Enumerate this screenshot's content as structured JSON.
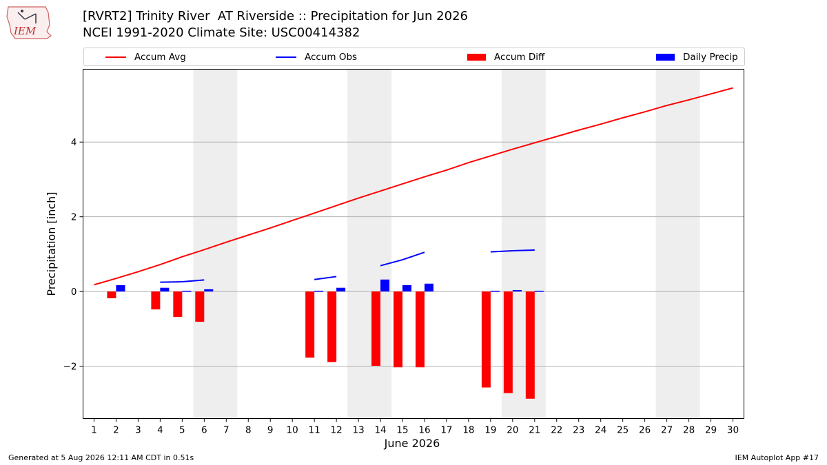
{
  "header": {
    "title_line1": "[RVRT2] Trinity River  AT Riverside :: Precipitation for Jun 2026",
    "title_line2": "NCEI 1991-2020 Climate Site: USC00414382",
    "logo_text": "IEM"
  },
  "legend": {
    "items": [
      {
        "label": "Accum Avg",
        "color": "#ff0000",
        "kind": "line"
      },
      {
        "label": "Accum Obs",
        "color": "#0000ff",
        "kind": "line"
      },
      {
        "label": "Accum Diff",
        "color": "#ff0000",
        "kind": "box"
      },
      {
        "label": "Daily Precip",
        "color": "#0000ff",
        "kind": "box"
      }
    ]
  },
  "footer": {
    "left": "Generated at 5 Aug 2026 12:11 AM CDT in 0.51s",
    "right": "IEM Autoplot App #17"
  },
  "chart_data": {
    "type": "bar",
    "xlabel": "June 2026",
    "ylabel": "Precipitation [inch]",
    "xlim": [
      0.5,
      30.5
    ],
    "ylim": [
      -3.4,
      5.95
    ],
    "yticks": [
      -2,
      0,
      2,
      4
    ],
    "ytick_labels": [
      "−2",
      "0",
      "2",
      "4"
    ],
    "xticks": [
      1,
      2,
      3,
      4,
      5,
      6,
      7,
      8,
      9,
      10,
      11,
      12,
      13,
      14,
      15,
      16,
      17,
      18,
      19,
      20,
      21,
      22,
      23,
      24,
      25,
      26,
      27,
      28,
      29,
      30
    ],
    "grid": "horizontal",
    "weekend_shading": [
      [
        6,
        7
      ],
      [
        13,
        14
      ],
      [
        20,
        21
      ],
      [
        27,
        28
      ]
    ],
    "series": [
      {
        "name": "Accum Avg",
        "kind": "line",
        "color": "#ff0000",
        "x": [
          1,
          2,
          3,
          4,
          5,
          6,
          7,
          8,
          9,
          10,
          11,
          12,
          13,
          14,
          15,
          16,
          17,
          18,
          19,
          20,
          21,
          22,
          23,
          24,
          25,
          26,
          27,
          28,
          29,
          30
        ],
        "values": [
          0.18,
          0.35,
          0.53,
          0.72,
          0.93,
          1.12,
          1.32,
          1.51,
          1.7,
          1.9,
          2.1,
          2.3,
          2.5,
          2.69,
          2.88,
          3.07,
          3.25,
          3.45,
          3.63,
          3.81,
          3.98,
          4.15,
          4.32,
          4.48,
          4.65,
          4.81,
          4.98,
          5.13,
          5.29,
          5.45
        ]
      },
      {
        "name": "Accum Obs",
        "kind": "line",
        "color": "#0000ff",
        "segments": [
          {
            "x": [
              4,
              5,
              6
            ],
            "values": [
              0.25,
              0.26,
              0.31
            ]
          },
          {
            "x": [
              11,
              12
            ],
            "values": [
              0.32,
              0.4
            ]
          },
          {
            "x": [
              14,
              15,
              16
            ],
            "values": [
              0.69,
              0.85,
              1.05
            ]
          },
          {
            "x": [
              19,
              20,
              21
            ],
            "values": [
              1.06,
              1.09,
              1.11
            ]
          }
        ]
      },
      {
        "name": "Accum Diff",
        "kind": "bar",
        "color": "#ff0000",
        "x": [
          2,
          4,
          5,
          6,
          11,
          12,
          14,
          15,
          16,
          19,
          20,
          21
        ],
        "values": [
          -0.18,
          -0.48,
          -0.68,
          -0.81,
          -1.77,
          -1.89,
          -1.99,
          -2.03,
          -2.03,
          -2.57,
          -2.72,
          -2.87
        ]
      },
      {
        "name": "Daily Precip",
        "kind": "bar",
        "color": "#0000ff",
        "x": [
          2,
          4,
          5,
          6,
          11,
          12,
          14,
          15,
          16,
          19,
          20,
          21
        ],
        "values": [
          0.17,
          0.1,
          0.02,
          0.06,
          0.02,
          0.1,
          0.32,
          0.17,
          0.21,
          0.02,
          0.04,
          0.02
        ]
      }
    ]
  }
}
